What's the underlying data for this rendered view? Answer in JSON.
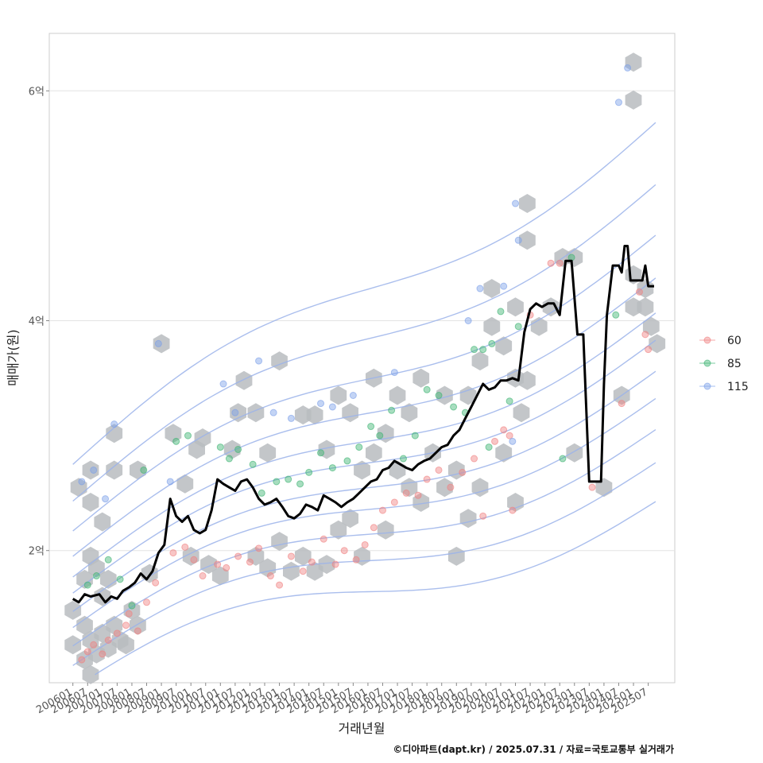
{
  "chart_data": {
    "type": "scatter",
    "xlabel": "거래년월",
    "ylabel": "매매가(원)",
    "caption": "©디아파트(dapt.kr) / 2025.07.31 / 자료=국토교통부 실거래가",
    "x_ticks": [
      "200601",
      "200607",
      "200701",
      "200707",
      "200801",
      "200807",
      "200901",
      "200907",
      "201001",
      "201007",
      "201101",
      "201107",
      "201201",
      "201207",
      "201301",
      "201307",
      "201401",
      "201407",
      "201501",
      "201507",
      "201601",
      "201607",
      "201701",
      "201707",
      "201801",
      "201807",
      "201901",
      "201907",
      "202001",
      "202007",
      "202101",
      "202107",
      "202201",
      "202207",
      "202301",
      "202307",
      "202401",
      "202407",
      "202501",
      "202507"
    ],
    "y_ticks": [
      {
        "value": 2,
        "label": "2억"
      },
      {
        "value": 4,
        "label": "4억"
      },
      {
        "value": 6,
        "label": "6억"
      }
    ],
    "ylim": [
      0.85,
      6.5
    ],
    "xlim": [
      2005.2,
      2026.4
    ],
    "grid": true,
    "legend_position": "right",
    "colors": {
      "s60": "#f08080",
      "s85": "#3cb371",
      "s115": "#7b9fe8",
      "hex": "#b8bcc0",
      "contour": "#9bb3ea",
      "median": "#000000"
    },
    "series": [
      {
        "name": "60",
        "points": [
          [
            2006.3,
            1.05
          ],
          [
            2006.5,
            1.12
          ],
          [
            2006.7,
            1.18
          ],
          [
            2007.0,
            1.1
          ],
          [
            2007.2,
            1.22
          ],
          [
            2007.5,
            1.28
          ],
          [
            2007.8,
            1.35
          ],
          [
            2007.9,
            1.45
          ],
          [
            2008.2,
            1.3
          ],
          [
            2008.5,
            1.55
          ],
          [
            2008.8,
            1.72
          ],
          [
            2009.4,
            1.98
          ],
          [
            2009.8,
            2.03
          ],
          [
            2010.1,
            1.92
          ],
          [
            2010.4,
            1.78
          ],
          [
            2010.9,
            1.88
          ],
          [
            2011.2,
            1.85
          ],
          [
            2011.6,
            1.95
          ],
          [
            2012.0,
            1.9
          ],
          [
            2012.3,
            2.02
          ],
          [
            2012.7,
            1.78
          ],
          [
            2013.0,
            1.7
          ],
          [
            2013.4,
            1.95
          ],
          [
            2013.8,
            1.82
          ],
          [
            2014.1,
            1.9
          ],
          [
            2014.5,
            2.1
          ],
          [
            2014.9,
            1.88
          ],
          [
            2015.2,
            2.0
          ],
          [
            2015.6,
            1.92
          ],
          [
            2015.9,
            2.05
          ],
          [
            2016.2,
            2.2
          ],
          [
            2016.5,
            2.35
          ],
          [
            2016.9,
            2.42
          ],
          [
            2017.3,
            2.5
          ],
          [
            2017.7,
            2.48
          ],
          [
            2018.0,
            2.62
          ],
          [
            2018.4,
            2.7
          ],
          [
            2018.8,
            2.55
          ],
          [
            2019.2,
            2.68
          ],
          [
            2019.6,
            2.8
          ],
          [
            2019.9,
            2.3
          ],
          [
            2020.3,
            2.95
          ],
          [
            2020.6,
            3.05
          ],
          [
            2020.8,
            3.0
          ],
          [
            2020.9,
            2.35
          ],
          [
            2021.5,
            4.05
          ],
          [
            2022.2,
            4.5
          ],
          [
            2022.5,
            4.5
          ],
          [
            2023.6,
            2.55
          ],
          [
            2024.6,
            3.28
          ],
          [
            2025.2,
            4.25
          ],
          [
            2025.4,
            3.88
          ],
          [
            2025.5,
            3.75
          ]
        ]
      },
      {
        "name": "85",
        "points": [
          [
            2006.5,
            1.7
          ],
          [
            2006.8,
            1.78
          ],
          [
            2007.2,
            1.92
          ],
          [
            2007.6,
            1.75
          ],
          [
            2008.0,
            1.52
          ],
          [
            2008.4,
            2.7
          ],
          [
            2009.5,
            2.95
          ],
          [
            2009.9,
            3.0
          ],
          [
            2011.0,
            2.9
          ],
          [
            2011.3,
            2.8
          ],
          [
            2011.6,
            2.88
          ],
          [
            2012.1,
            2.75
          ],
          [
            2012.4,
            2.5
          ],
          [
            2012.9,
            2.6
          ],
          [
            2013.3,
            2.62
          ],
          [
            2013.7,
            2.58
          ],
          [
            2014.0,
            2.68
          ],
          [
            2014.4,
            2.85
          ],
          [
            2014.8,
            2.72
          ],
          [
            2015.3,
            2.78
          ],
          [
            2015.7,
            2.9
          ],
          [
            2016.1,
            3.08
          ],
          [
            2016.4,
            3.0
          ],
          [
            2016.8,
            3.22
          ],
          [
            2017.2,
            2.8
          ],
          [
            2017.6,
            3.0
          ],
          [
            2018.0,
            3.4
          ],
          [
            2018.4,
            3.35
          ],
          [
            2018.9,
            3.25
          ],
          [
            2019.3,
            3.2
          ],
          [
            2019.6,
            3.75
          ],
          [
            2019.9,
            3.75
          ],
          [
            2020.1,
            2.9
          ],
          [
            2020.2,
            3.8
          ],
          [
            2020.5,
            4.08
          ],
          [
            2020.8,
            3.3
          ],
          [
            2021.1,
            3.95
          ],
          [
            2022.6,
            2.8
          ],
          [
            2022.9,
            4.55
          ],
          [
            2024.4,
            4.05
          ]
        ]
      },
      {
        "name": "115",
        "points": [
          [
            2006.3,
            2.6
          ],
          [
            2006.7,
            2.7
          ],
          [
            2007.1,
            2.45
          ],
          [
            2007.4,
            3.1
          ],
          [
            2008.9,
            3.8
          ],
          [
            2009.3,
            2.6
          ],
          [
            2011.1,
            3.45
          ],
          [
            2011.5,
            3.2
          ],
          [
            2012.3,
            3.65
          ],
          [
            2012.8,
            3.2
          ],
          [
            2013.4,
            3.15
          ],
          [
            2014.4,
            3.28
          ],
          [
            2014.8,
            3.25
          ],
          [
            2015.5,
            3.35
          ],
          [
            2016.9,
            3.55
          ],
          [
            2019.4,
            4.0
          ],
          [
            2019.8,
            4.28
          ],
          [
            2020.6,
            4.3
          ],
          [
            2021.0,
            5.02
          ],
          [
            2021.1,
            4.7
          ],
          [
            2024.5,
            5.9
          ],
          [
            2024.8,
            6.2
          ],
          [
            2020.9,
            2.95
          ]
        ]
      }
    ],
    "median_line": [
      [
        2006.0,
        1.58
      ],
      [
        2006.2,
        1.55
      ],
      [
        2006.4,
        1.62
      ],
      [
        2006.6,
        1.6
      ],
      [
        2006.9,
        1.62
      ],
      [
        2007.1,
        1.55
      ],
      [
        2007.3,
        1.6
      ],
      [
        2007.5,
        1.58
      ],
      [
        2007.7,
        1.65
      ],
      [
        2007.9,
        1.68
      ],
      [
        2008.1,
        1.72
      ],
      [
        2008.3,
        1.8
      ],
      [
        2008.5,
        1.75
      ],
      [
        2008.7,
        1.82
      ],
      [
        2008.9,
        1.98
      ],
      [
        2009.1,
        2.05
      ],
      [
        2009.3,
        2.45
      ],
      [
        2009.5,
        2.3
      ],
      [
        2009.7,
        2.25
      ],
      [
        2009.9,
        2.3
      ],
      [
        2010.1,
        2.18
      ],
      [
        2010.3,
        2.15
      ],
      [
        2010.5,
        2.18
      ],
      [
        2010.7,
        2.35
      ],
      [
        2010.9,
        2.62
      ],
      [
        2011.1,
        2.58
      ],
      [
        2011.3,
        2.55
      ],
      [
        2011.5,
        2.52
      ],
      [
        2011.7,
        2.6
      ],
      [
        2011.9,
        2.62
      ],
      [
        2012.1,
        2.55
      ],
      [
        2012.3,
        2.45
      ],
      [
        2012.5,
        2.4
      ],
      [
        2012.7,
        2.42
      ],
      [
        2012.9,
        2.45
      ],
      [
        2013.1,
        2.38
      ],
      [
        2013.3,
        2.3
      ],
      [
        2013.5,
        2.28
      ],
      [
        2013.7,
        2.32
      ],
      [
        2013.9,
        2.4
      ],
      [
        2014.1,
        2.38
      ],
      [
        2014.3,
        2.35
      ],
      [
        2014.5,
        2.48
      ],
      [
        2014.7,
        2.45
      ],
      [
        2014.9,
        2.42
      ],
      [
        2015.1,
        2.38
      ],
      [
        2015.3,
        2.42
      ],
      [
        2015.5,
        2.45
      ],
      [
        2015.7,
        2.5
      ],
      [
        2015.9,
        2.55
      ],
      [
        2016.1,
        2.6
      ],
      [
        2016.3,
        2.62
      ],
      [
        2016.5,
        2.7
      ],
      [
        2016.7,
        2.72
      ],
      [
        2016.9,
        2.78
      ],
      [
        2017.1,
        2.75
      ],
      [
        2017.3,
        2.72
      ],
      [
        2017.5,
        2.7
      ],
      [
        2017.7,
        2.75
      ],
      [
        2017.9,
        2.78
      ],
      [
        2018.1,
        2.8
      ],
      [
        2018.3,
        2.85
      ],
      [
        2018.5,
        2.9
      ],
      [
        2018.7,
        2.92
      ],
      [
        2018.9,
        3.0
      ],
      [
        2019.1,
        3.05
      ],
      [
        2019.3,
        3.15
      ],
      [
        2019.5,
        3.25
      ],
      [
        2019.7,
        3.35
      ],
      [
        2019.9,
        3.45
      ],
      [
        2020.1,
        3.4
      ],
      [
        2020.3,
        3.42
      ],
      [
        2020.5,
        3.48
      ],
      [
        2020.7,
        3.48
      ],
      [
        2020.9,
        3.5
      ],
      [
        2021.1,
        3.48
      ],
      [
        2021.3,
        3.9
      ],
      [
        2021.5,
        4.1
      ],
      [
        2021.7,
        4.15
      ],
      [
        2021.9,
        4.12
      ],
      [
        2022.1,
        4.15
      ],
      [
        2022.3,
        4.15
      ],
      [
        2022.5,
        4.05
      ],
      [
        2022.7,
        4.52
      ],
      [
        2022.9,
        4.52
      ],
      [
        2023.1,
        3.88
      ],
      [
        2023.3,
        3.88
      ],
      [
        2023.5,
        2.6
      ],
      [
        2023.7,
        2.6
      ],
      [
        2023.9,
        2.6
      ],
      [
        2024.0,
        3.45
      ],
      [
        2024.1,
        4.05
      ],
      [
        2024.3,
        4.48
      ],
      [
        2024.5,
        4.48
      ],
      [
        2024.6,
        4.42
      ],
      [
        2024.7,
        4.65
      ],
      [
        2024.8,
        4.65
      ],
      [
        2024.9,
        4.35
      ],
      [
        2025.1,
        4.35
      ],
      [
        2025.3,
        4.35
      ],
      [
        2025.4,
        4.48
      ],
      [
        2025.5,
        4.3
      ],
      [
        2025.7,
        4.3
      ]
    ],
    "hex_bins": [
      [
        2006.0,
        1.48
      ],
      [
        2006.0,
        1.18
      ],
      [
        2006.4,
        1.05
      ],
      [
        2006.4,
        1.35
      ],
      [
        2006.6,
        0.92
      ],
      [
        2006.6,
        1.22
      ],
      [
        2006.8,
        1.1
      ],
      [
        2007.0,
        1.28
      ],
      [
        2007.2,
        1.15
      ],
      [
        2007.4,
        1.35
      ],
      [
        2007.6,
        1.22
      ],
      [
        2007.8,
        1.18
      ],
      [
        2008.0,
        1.48
      ],
      [
        2008.2,
        1.35
      ],
      [
        2008.6,
        1.8
      ],
      [
        2006.4,
        1.75
      ],
      [
        2006.6,
        1.95
      ],
      [
        2006.8,
        1.85
      ],
      [
        2007.0,
        1.6
      ],
      [
        2007.2,
        1.75
      ],
      [
        2006.2,
        2.55
      ],
      [
        2006.6,
        2.7
      ],
      [
        2006.6,
        2.42
      ],
      [
        2007.0,
        2.25
      ],
      [
        2007.4,
        3.02
      ],
      [
        2007.4,
        2.7
      ],
      [
        2008.2,
        2.7
      ],
      [
        2009.0,
        3.8
      ],
      [
        2009.4,
        3.02
      ],
      [
        2009.8,
        2.58
      ],
      [
        2010.2,
        2.88
      ],
      [
        2010.4,
        2.98
      ],
      [
        2010.0,
        1.95
      ],
      [
        2010.6,
        1.88
      ],
      [
        2011.0,
        1.78
      ],
      [
        2011.4,
        2.88
      ],
      [
        2011.6,
        3.2
      ],
      [
        2011.8,
        3.48
      ],
      [
        2012.2,
        3.2
      ],
      [
        2012.2,
        1.95
      ],
      [
        2012.6,
        1.85
      ],
      [
        2012.6,
        2.85
      ],
      [
        2013.0,
        3.65
      ],
      [
        2013.0,
        2.08
      ],
      [
        2013.4,
        1.82
      ],
      [
        2013.8,
        3.18
      ],
      [
        2013.8,
        1.95
      ],
      [
        2014.2,
        1.82
      ],
      [
        2014.2,
        3.18
      ],
      [
        2014.6,
        2.88
      ],
      [
        2014.6,
        1.88
      ],
      [
        2015.0,
        2.18
      ],
      [
        2015.0,
        3.35
      ],
      [
        2015.4,
        3.2
      ],
      [
        2015.4,
        2.28
      ],
      [
        2015.8,
        1.95
      ],
      [
        2015.8,
        2.7
      ],
      [
        2016.2,
        3.5
      ],
      [
        2016.2,
        2.85
      ],
      [
        2016.6,
        2.18
      ],
      [
        2016.6,
        3.02
      ],
      [
        2017.0,
        3.35
      ],
      [
        2017.0,
        2.7
      ],
      [
        2017.4,
        2.55
      ],
      [
        2017.4,
        3.2
      ],
      [
        2017.8,
        3.5
      ],
      [
        2017.8,
        2.42
      ],
      [
        2018.2,
        2.85
      ],
      [
        2018.6,
        2.55
      ],
      [
        2018.6,
        3.35
      ],
      [
        2019.0,
        1.95
      ],
      [
        2019.0,
        2.7
      ],
      [
        2019.4,
        3.35
      ],
      [
        2019.4,
        2.28
      ],
      [
        2019.8,
        3.65
      ],
      [
        2019.8,
        2.55
      ],
      [
        2020.2,
        4.28
      ],
      [
        2020.2,
        3.95
      ],
      [
        2020.6,
        3.78
      ],
      [
        2020.6,
        2.85
      ],
      [
        2021.0,
        4.12
      ],
      [
        2021.0,
        3.5
      ],
      [
        2021.0,
        2.42
      ],
      [
        2021.2,
        3.2
      ],
      [
        2021.4,
        4.7
      ],
      [
        2021.4,
        5.02
      ],
      [
        2021.4,
        3.48
      ],
      [
        2021.8,
        3.95
      ],
      [
        2022.2,
        4.12
      ],
      [
        2022.6,
        4.55
      ],
      [
        2023.0,
        4.55
      ],
      [
        2023.0,
        2.85
      ],
      [
        2024.0,
        2.55
      ],
      [
        2024.6,
        3.35
      ],
      [
        2025.0,
        6.25
      ],
      [
        2025.0,
        5.92
      ],
      [
        2025.0,
        4.4
      ],
      [
        2025.0,
        4.12
      ],
      [
        2025.4,
        4.28
      ],
      [
        2025.4,
        4.12
      ],
      [
        2025.6,
        3.95
      ],
      [
        2025.8,
        3.8
      ]
    ]
  }
}
